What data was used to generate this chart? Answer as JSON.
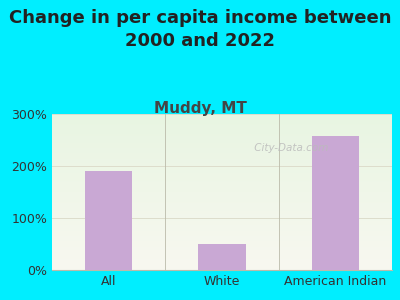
{
  "title": "Change in per capita income between\n2000 and 2022",
  "subtitle": "Muddy, MT",
  "categories": [
    "All",
    "White",
    "American Indian"
  ],
  "values": [
    190,
    50,
    257
  ],
  "bar_color": "#c9a8d4",
  "title_fontsize": 13,
  "subtitle_fontsize": 11,
  "title_color": "#222222",
  "subtitle_color": "#444444",
  "tick_label_fontsize": 9,
  "ylim": [
    0,
    300
  ],
  "yticks": [
    0,
    100,
    200,
    300
  ],
  "ytick_labels": [
    "0%",
    "100%",
    "200%",
    "300%"
  ],
  "bg_outer": "#00eeff",
  "bg_plot_color1": "#e8f5e2",
  "bg_plot_color2": "#f8f8f0",
  "watermark": " City-Data.com",
  "grid_color": "#ddddcc",
  "bar_width": 0.42
}
